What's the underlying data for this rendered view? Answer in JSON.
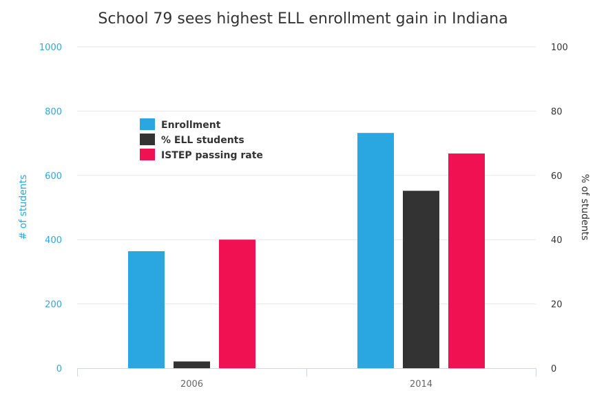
{
  "chart_data": {
    "type": "bar",
    "title": "School 79 sees highest ELL enrollment gain in Indiana",
    "categories": [
      "2006",
      "2014"
    ],
    "xlabel": "",
    "y_left": {
      "label": "# of students",
      "range": [
        0,
        1000
      ],
      "ticks": [
        "0",
        "200",
        "400",
        "600",
        "800",
        "1000"
      ],
      "color": "#2aa7e0"
    },
    "y_right": {
      "label": "% of students",
      "range": [
        0,
        100
      ],
      "ticks": [
        "0",
        "20",
        "40",
        "60",
        "80",
        "100"
      ],
      "color": "#333333"
    },
    "grid": true,
    "legend_position": "top-left",
    "series": [
      {
        "name": "Enrollment",
        "axis": "left",
        "color": "#2aa7e0",
        "values": [
          364,
          732
        ]
      },
      {
        "name": "% ELL students",
        "axis": "right",
        "color": "#333333",
        "values": [
          2.1,
          55.2
        ]
      },
      {
        "name": "ISTEP passing rate",
        "axis": "right",
        "color": "#f01152",
        "values": [
          40,
          66.8
        ]
      }
    ]
  }
}
